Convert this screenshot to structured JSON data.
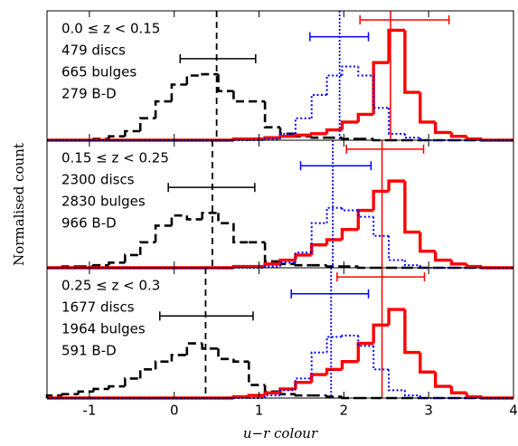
{
  "chart_data": [
    {
      "type": "histogram",
      "label": "0.0  ≤ z < 0.15",
      "bins": [
        -1.5,
        -1.32,
        -1.13,
        -0.95,
        -0.77,
        -0.58,
        -0.4,
        -0.22,
        -0.03,
        0.15,
        0.33,
        0.52,
        0.7,
        0.88,
        1.07,
        1.25,
        1.43,
        1.62,
        1.8,
        1.98,
        2.17,
        2.35,
        2.53,
        2.72,
        2.9,
        3.08,
        3.27,
        3.45,
        3.63,
        3.82,
        4.0
      ],
      "xlim": [
        -1.5,
        4
      ],
      "ylim": [
        0,
        1
      ],
      "series": [
        {
          "name": "479 discs",
          "color": "#0000ff",
          "style": "dotted",
          "median": 1.95,
          "interval": [
            1.6,
            2.29
          ],
          "values": [
            0,
            0,
            0,
            0,
            0,
            0,
            0,
            0,
            0,
            0,
            0,
            0,
            0,
            0,
            0.01,
            0.05,
            0.17,
            0.35,
            0.5,
            0.57,
            0.5,
            0.25,
            0.05,
            0.02,
            0,
            0,
            0,
            0,
            0,
            0
          ]
        },
        {
          "name": "665 bulges",
          "color": "#ff0000",
          "style": "solid",
          "median": 2.55,
          "interval": [
            2.19,
            3.24
          ],
          "values": [
            0,
            0,
            0,
            0,
            0,
            0,
            0,
            0,
            0,
            0,
            0,
            0,
            0.01,
            0.01,
            0.02,
            0.03,
            0.04,
            0.05,
            0.08,
            0.14,
            0.2,
            0.6,
            0.85,
            0.37,
            0.14,
            0.06,
            0.03,
            0.01,
            0,
            0
          ]
        },
        {
          "name": "279 B-D",
          "color": "#000000",
          "style": "dashed",
          "median": 0.5,
          "interval": [
            0.07,
            0.96
          ],
          "values": [
            0,
            0,
            0,
            0.01,
            0.03,
            0.07,
            0.17,
            0.3,
            0.43,
            0.5,
            0.51,
            0.38,
            0.3,
            0.3,
            0.1,
            0.05,
            0.03,
            0.02,
            0.02,
            0.01,
            0.01,
            0,
            0,
            0,
            0,
            0,
            0,
            0,
            0,
            0
          ]
        }
      ]
    },
    {
      "type": "histogram",
      "label": "0.15  ≤ z < 0.25",
      "ylabel": "Normalised count",
      "bins": [
        -1.5,
        -1.32,
        -1.13,
        -0.95,
        -0.77,
        -0.58,
        -0.4,
        -0.22,
        -0.03,
        0.15,
        0.33,
        0.52,
        0.7,
        0.88,
        1.07,
        1.25,
        1.43,
        1.62,
        1.8,
        1.98,
        2.17,
        2.35,
        2.53,
        2.72,
        2.9,
        3.08,
        3.27,
        3.45,
        3.63,
        3.82,
        4.0
      ],
      "xlim": [
        -1.5,
        4
      ],
      "ylim": [
        0,
        1
      ],
      "series": [
        {
          "name": "2300 discs",
          "color": "#0000ff",
          "style": "dotted",
          "median": 1.87,
          "interval": [
            1.49,
            2.32
          ],
          "values": [
            0,
            0,
            0,
            0,
            0,
            0,
            0,
            0,
            0,
            0,
            0,
            0,
            0,
            0,
            0.01,
            0.04,
            0.12,
            0.35,
            0.47,
            0.45,
            0.4,
            0.25,
            0.06,
            0.02,
            0,
            0,
            0,
            0,
            0,
            0
          ]
        },
        {
          "name": "2830 bulges",
          "color": "#ff0000",
          "style": "solid",
          "median": 2.45,
          "interval": [
            2.03,
            2.94
          ],
          "values": [
            0,
            0,
            0,
            0,
            0,
            0,
            0,
            0,
            0,
            0,
            0,
            0,
            0.01,
            0.01,
            0.03,
            0.06,
            0.1,
            0.18,
            0.22,
            0.3,
            0.45,
            0.6,
            0.68,
            0.28,
            0.13,
            0.06,
            0.03,
            0.01,
            0,
            0
          ]
        },
        {
          "name": "966 B-D",
          "color": "#000000",
          "style": "dashed",
          "median": 0.45,
          "interval": [
            -0.07,
            0.95
          ],
          "values": [
            0,
            0.01,
            0.01,
            0.02,
            0.04,
            0.1,
            0.2,
            0.33,
            0.41,
            0.38,
            0.43,
            0.35,
            0.2,
            0.2,
            0.05,
            0.03,
            0.02,
            0.02,
            0.01,
            0.01,
            0,
            0,
            0,
            0,
            0,
            0,
            0,
            0,
            0,
            0
          ]
        }
      ]
    },
    {
      "type": "histogram",
      "label": "0.25  ≤ z < 0.3",
      "xlabel": "u−r colour",
      "bins": [
        -1.5,
        -1.32,
        -1.13,
        -0.95,
        -0.77,
        -0.58,
        -0.4,
        -0.22,
        -0.03,
        0.15,
        0.33,
        0.52,
        0.7,
        0.88,
        1.07,
        1.25,
        1.43,
        1.62,
        1.8,
        1.98,
        2.17,
        2.35,
        2.53,
        2.72,
        2.9,
        3.08,
        3.27,
        3.45,
        3.63,
        3.82,
        4.0
      ],
      "xlim": [
        -1.5,
        4
      ],
      "ylim": [
        0,
        1
      ],
      "xticks": [
        -1,
        0,
        1,
        2,
        3,
        4
      ],
      "series": [
        {
          "name": "1677 discs",
          "color": "#0000ff",
          "style": "dotted",
          "median": 1.85,
          "interval": [
            1.38,
            2.29
          ],
          "values": [
            0,
            0,
            0,
            0,
            0,
            0,
            0,
            0,
            0,
            0,
            0,
            0,
            0,
            0,
            0.02,
            0.06,
            0.15,
            0.35,
            0.47,
            0.48,
            0.4,
            0.22,
            0.06,
            0.02,
            0,
            0,
            0,
            0,
            0,
            0
          ]
        },
        {
          "name": "1964 bulges",
          "color": "#ff0000",
          "style": "solid",
          "median": 2.45,
          "interval": [
            1.92,
            2.95
          ],
          "values": [
            0,
            0,
            0,
            0,
            0,
            0,
            0,
            0,
            0,
            0,
            0,
            0,
            0.01,
            0.02,
            0.04,
            0.07,
            0.12,
            0.18,
            0.22,
            0.28,
            0.42,
            0.56,
            0.68,
            0.35,
            0.2,
            0.09,
            0.04,
            0.01,
            0,
            0
          ]
        },
        {
          "name": "591 B-D",
          "color": "#000000",
          "style": "dashed",
          "median": 0.37,
          "interval": [
            -0.17,
            0.93
          ],
          "values": [
            0.02,
            0.03,
            0.05,
            0.07,
            0.09,
            0.15,
            0.22,
            0.28,
            0.33,
            0.42,
            0.38,
            0.3,
            0.28,
            0.1,
            0.05,
            0.03,
            0.02,
            0.02,
            0.01,
            0,
            0,
            0,
            0,
            0,
            0,
            0,
            0,
            0,
            0,
            0
          ]
        }
      ]
    }
  ]
}
